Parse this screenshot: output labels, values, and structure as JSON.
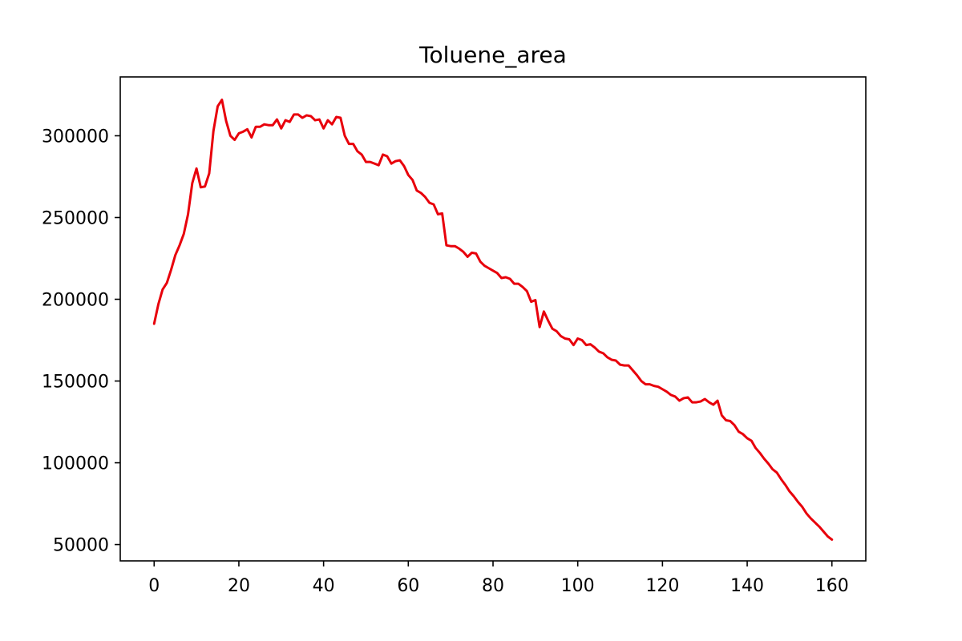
{
  "chart_data": {
    "type": "line",
    "title": "Toluene_area",
    "xlabel": "",
    "ylabel": "",
    "xlim": [
      -8,
      168
    ],
    "ylim": [
      40000,
      336000
    ],
    "xticks": [
      0,
      20,
      40,
      60,
      80,
      100,
      120,
      140,
      160
    ],
    "xtick_labels": [
      "0",
      "20",
      "40",
      "60",
      "80",
      "100",
      "120",
      "140",
      "160"
    ],
    "yticks": [
      50000,
      100000,
      150000,
      200000,
      250000,
      300000
    ],
    "ytick_labels": [
      "50000",
      "100000",
      "150000",
      "200000",
      "250000",
      "300000"
    ],
    "grid": false,
    "legend": "none",
    "series": [
      {
        "color": "#e8000b",
        "x": [
          0,
          1,
          2,
          3,
          4,
          5,
          6,
          7,
          8,
          9,
          10,
          11,
          12,
          13,
          14,
          15,
          16,
          17,
          18,
          19,
          20,
          21,
          22,
          23,
          24,
          25,
          26,
          27,
          28,
          29,
          30,
          31,
          32,
          33,
          34,
          35,
          36,
          37,
          38,
          39,
          40,
          41,
          42,
          43,
          44,
          45,
          46,
          47,
          48,
          49,
          50,
          51,
          52,
          53,
          54,
          55,
          56,
          57,
          58,
          59,
          60,
          61,
          62,
          63,
          64,
          65,
          66,
          67,
          68,
          69,
          70,
          71,
          72,
          73,
          74,
          75,
          76,
          77,
          78,
          79,
          80,
          81,
          82,
          83,
          84,
          85,
          86,
          87,
          88,
          89,
          90,
          91,
          92,
          93,
          94,
          95,
          96,
          97,
          98,
          99,
          100,
          101,
          102,
          103,
          104,
          105,
          106,
          107,
          108,
          109,
          110,
          111,
          112,
          113,
          114,
          115,
          116,
          117,
          118,
          119,
          120,
          121,
          122,
          123,
          124,
          125,
          126,
          127,
          128,
          129,
          130,
          131,
          132,
          133,
          134,
          135,
          136,
          137,
          138,
          139,
          140,
          141,
          142,
          143,
          144,
          145,
          146,
          147,
          148,
          149,
          150,
          151,
          152,
          153,
          154,
          155,
          156,
          157,
          158,
          159,
          160
        ],
        "y": [
          185000,
          197000,
          206000,
          210000,
          218000,
          227000,
          233000,
          240000,
          252000,
          271000,
          280000,
          268500,
          269000,
          277000,
          303000,
          318000,
          322000,
          309000,
          300000,
          297500,
          301500,
          302500,
          304000,
          299000,
          305500,
          305500,
          307000,
          306500,
          306500,
          310000,
          304500,
          309500,
          308500,
          313000,
          313000,
          311000,
          312500,
          312000,
          309500,
          310000,
          304500,
          309500,
          307000,
          311500,
          311000,
          300000,
          295000,
          295000,
          290500,
          288500,
          284000,
          284000,
          283000,
          282000,
          288500,
          287500,
          283000,
          284500,
          285000,
          281500,
          276000,
          273000,
          266500,
          265000,
          262500,
          259000,
          258000,
          252000,
          252500,
          233000,
          232500,
          232500,
          231000,
          229000,
          226000,
          228500,
          228000,
          223000,
          220500,
          219000,
          217500,
          216000,
          213000,
          213500,
          212500,
          209500,
          209500,
          207500,
          205000,
          198500,
          199500,
          183000,
          192500,
          187000,
          182000,
          180500,
          177500,
          176000,
          175500,
          172000,
          176000,
          175000,
          172000,
          172500,
          170500,
          168000,
          167000,
          164500,
          163000,
          162500,
          160000,
          159500,
          159500,
          156500,
          153500,
          150000,
          148000,
          148000,
          147000,
          146500,
          145000,
          143500,
          141500,
          140500,
          138000,
          139500,
          140000,
          137000,
          137000,
          137500,
          139000,
          137000,
          135500,
          138000,
          129000,
          126000,
          125500,
          123000,
          119000,
          117500,
          115000,
          113500,
          109000,
          106000,
          102500,
          99500,
          96000,
          94000,
          90000,
          86500,
          82500,
          79500,
          76000,
          73000,
          69000,
          66000,
          63500,
          61000,
          58000,
          55000,
          53000
        ]
      }
    ]
  }
}
